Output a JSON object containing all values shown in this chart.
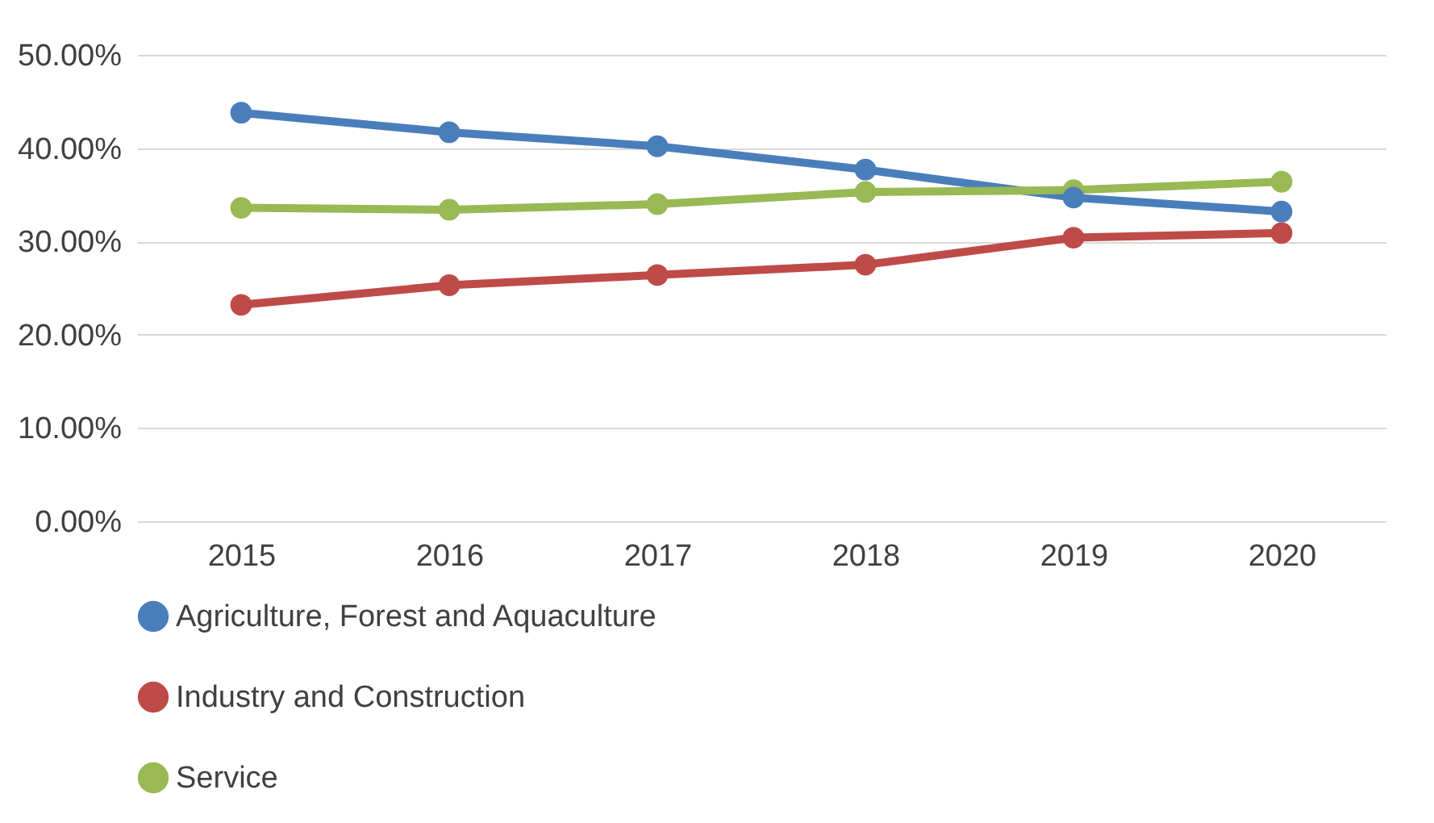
{
  "chart_data": {
    "type": "line",
    "categories": [
      "2015",
      "2016",
      "2017",
      "2018",
      "2019",
      "2020"
    ],
    "series": [
      {
        "name": "Agriculture, Forest and Aquaculture",
        "color": "#4a7ebb",
        "values": [
          43.8,
          41.7,
          40.2,
          37.7,
          34.7,
          33.2
        ]
      },
      {
        "name": "Industry and Construction",
        "color": "#be4b48",
        "values": [
          23.2,
          25.3,
          26.4,
          27.5,
          30.4,
          30.9
        ]
      },
      {
        "name": "Service",
        "color": "#98b954",
        "values": [
          33.6,
          33.4,
          34.0,
          35.3,
          35.5,
          36.4
        ]
      }
    ],
    "ylim": [
      0,
      50
    ],
    "yticks": [
      {
        "value": 0,
        "label": "0.00%"
      },
      {
        "value": 10,
        "label": "10.00%"
      },
      {
        "value": 20,
        "label": "20.00%"
      },
      {
        "value": 30,
        "label": "30.00%"
      },
      {
        "value": 40,
        "label": "40.00%"
      },
      {
        "value": 50,
        "label": "50.00%"
      }
    ],
    "grid": "y",
    "legend": "bottom",
    "marker": "circle",
    "line_style": "solid"
  }
}
